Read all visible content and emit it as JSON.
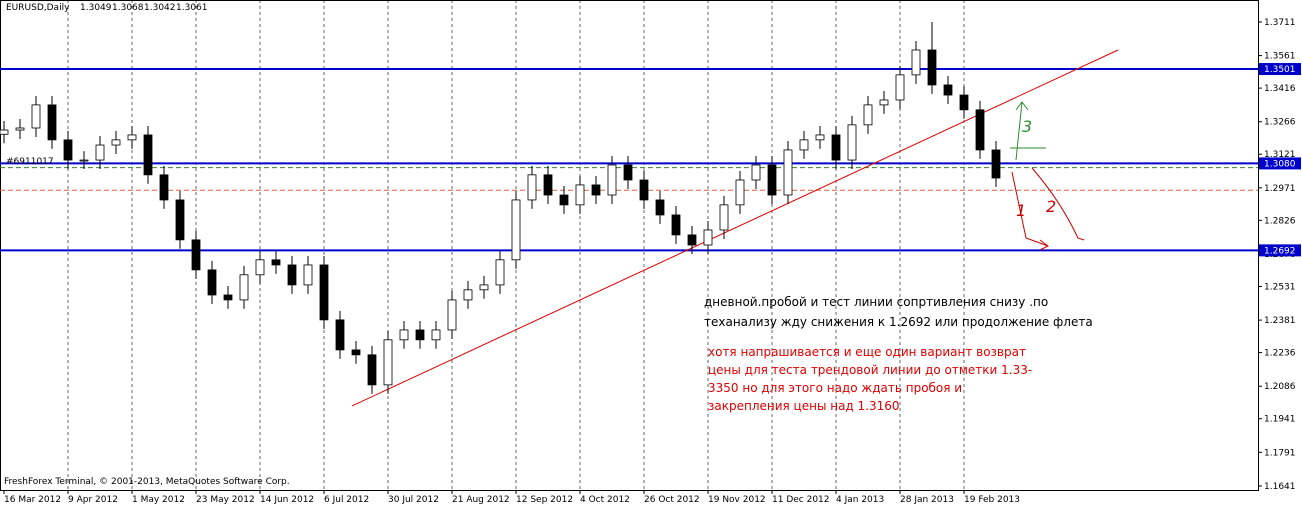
{
  "chart_data": {
    "type": "candlestick",
    "title": "EURUSD,Daily",
    "header_ohlc": [
      1.3049,
      1.3068,
      1.3042,
      1.3061
    ],
    "footer": "FreshForex Terminal, © 2001-2013, MetaQuotes Software Corp.",
    "account_label": "#6911017",
    "xlim": [
      -1,
      313.5
    ],
    "ylim": [
      1.1623,
      1.3809
    ],
    "xticks": [
      {
        "value": 0,
        "label": "16 Mar 2012"
      },
      {
        "value": 16,
        "label": "9 Apr 2012"
      },
      {
        "value": 32,
        "label": "1 May 2012"
      },
      {
        "value": 48,
        "label": "23 May 2012"
      },
      {
        "value": 64,
        "label": "14 Jun 2012"
      },
      {
        "value": 80,
        "label": "6 Jul 2012"
      },
      {
        "value": 96,
        "label": "30 Jul 2012"
      },
      {
        "value": 112,
        "label": "21 Aug 2012"
      },
      {
        "value": 128,
        "label": "12 Sep 2012"
      },
      {
        "value": 144,
        "label": "4 Oct 2012"
      },
      {
        "value": 160,
        "label": "26 Oct 2012"
      },
      {
        "value": 176,
        "label": "19 Nov 2012"
      },
      {
        "value": 192,
        "label": "11 Dec 2012"
      },
      {
        "value": 208,
        "label": "4 Jan 2013"
      },
      {
        "value": 224,
        "label": "28 Jan 2013"
      },
      {
        "value": 240,
        "label": "19 Feb 2013"
      }
    ],
    "yticks": [
      1.3711,
      1.3561,
      1.3416,
      1.3266,
      1.3121,
      1.2971,
      1.2826,
      1.2676,
      1.2531,
      1.2381,
      1.2236,
      1.2086,
      1.1941,
      1.1791,
      1.1641
    ],
    "grid": true,
    "x": [
      0,
      4,
      8,
      12,
      16,
      20,
      24,
      28,
      32,
      36,
      40,
      44,
      48,
      52,
      56,
      60,
      64,
      68,
      72,
      76,
      80,
      84,
      88,
      92,
      96,
      100,
      104,
      108,
      112,
      116,
      120,
      124,
      128,
      132,
      136,
      140,
      144,
      148,
      152,
      156,
      160,
      164,
      168,
      172,
      176,
      180,
      184,
      188,
      192,
      196,
      200,
      204,
      208,
      212,
      216,
      220,
      224,
      228,
      232,
      236,
      240,
      244,
      248
    ],
    "open": [
      1.321,
      1.3229,
      1.3238,
      1.3341,
      1.3185,
      1.3095,
      1.3095,
      1.3162,
      1.3185,
      1.3207,
      1.3029,
      1.2917,
      1.2739,
      1.2605,
      1.2493,
      1.2471,
      1.2583,
      1.265,
      1.2627,
      1.2538,
      1.2627,
      1.2382,
      1.2248,
      1.2226,
      1.2092,
      1.2293,
      1.2337,
      1.2293,
      1.2337,
      1.2471,
      1.2516,
      1.2538,
      1.265,
      1.2917,
      1.3029,
      1.2939,
      1.2895,
      1.2984,
      1.2939,
      1.3073,
      1.3006,
      1.2917,
      1.285,
      1.2761,
      1.2716,
      1.2783,
      1.2895,
      1.3006,
      1.3073,
      1.2939,
      1.314,
      1.3185,
      1.3207,
      1.3095,
      1.3252,
      1.3341,
      1.3363,
      1.3475,
      1.3586,
      1.343,
      1.3385,
      1.3319,
      1.314
    ],
    "high": [
      1.3269,
      1.3278,
      1.3381,
      1.3381,
      1.3225,
      1.3135,
      1.3202,
      1.3225,
      1.3247,
      1.3247,
      1.3069,
      1.2957,
      1.2779,
      1.2645,
      1.2533,
      1.2623,
      1.269,
      1.269,
      1.2667,
      1.2667,
      1.2667,
      1.2422,
      1.2288,
      1.2266,
      1.2333,
      1.2377,
      1.2377,
      1.2377,
      1.2511,
      1.2556,
      1.2578,
      1.269,
      1.2957,
      1.3069,
      1.3069,
      1.2979,
      1.3024,
      1.3024,
      1.3113,
      1.3113,
      1.3046,
      1.2957,
      1.289,
      1.2801,
      1.2823,
      1.2935,
      1.3046,
      1.3113,
      1.3113,
      1.318,
      1.3225,
      1.3247,
      1.3247,
      1.3292,
      1.3381,
      1.3403,
      1.3515,
      1.3626,
      1.3711,
      1.347,
      1.3425,
      1.3359,
      1.318
    ],
    "low": [
      1.317,
      1.3189,
      1.3198,
      1.3145,
      1.3055,
      1.3055,
      1.3055,
      1.3122,
      1.3145,
      1.2989,
      1.2877,
      1.2699,
      1.2565,
      1.2453,
      1.2431,
      1.2431,
      1.2543,
      1.2587,
      1.2498,
      1.2498,
      1.2342,
      1.2208,
      1.2186,
      1.2052,
      1.2052,
      1.2253,
      1.2253,
      1.2253,
      1.2297,
      1.2431,
      1.2476,
      1.2498,
      1.261,
      1.2877,
      1.2899,
      1.2855,
      1.2855,
      1.2899,
      1.2899,
      1.2966,
      1.2877,
      1.281,
      1.2721,
      1.2676,
      1.2676,
      1.2743,
      1.2855,
      1.2966,
      1.2899,
      1.2899,
      1.31,
      1.3145,
      1.3055,
      1.3055,
      1.3212,
      1.3301,
      1.3323,
      1.3435,
      1.339,
      1.3345,
      1.3279,
      1.31,
      1.2975
    ],
    "close": [
      1.3229,
      1.3238,
      1.3341,
      1.3185,
      1.3095,
      1.3095,
      1.3162,
      1.3185,
      1.3207,
      1.3029,
      1.2917,
      1.2739,
      1.2605,
      1.2493,
      1.2471,
      1.2583,
      1.265,
      1.2627,
      1.2538,
      1.2627,
      1.2382,
      1.2248,
      1.2226,
      1.2092,
      1.2293,
      1.2337,
      1.2293,
      1.2337,
      1.2471,
      1.2516,
      1.2538,
      1.265,
      1.2917,
      1.3029,
      1.2939,
      1.2895,
      1.2984,
      1.2939,
      1.3073,
      1.3006,
      1.2917,
      1.285,
      1.2761,
      1.2716,
      1.2783,
      1.2895,
      1.3006,
      1.3073,
      1.2939,
      1.314,
      1.3185,
      1.3207,
      1.3095,
      1.3252,
      1.3341,
      1.3363,
      1.3475,
      1.3586,
      1.343,
      1.3385,
      1.3319,
      1.314,
      1.3015
    ],
    "levels": [
      {
        "value": 1.3501,
        "color": "#0000cc"
      },
      {
        "value": 1.308,
        "label": "1.3080",
        "color": "#0000cc"
      },
      {
        "value": 1.2692,
        "color": "#0000cc"
      }
    ],
    "dashed_levels": [
      {
        "value": 1.3061,
        "color": "#2e8b2e"
      },
      {
        "value": 1.296,
        "color": "#e0603a"
      }
    ],
    "trendline": {
      "x": [
        87,
        278.5
      ],
      "y": [
        1.1998,
        1.3586
      ],
      "color": "#dd0000"
    },
    "annotations": {
      "main": [
        "дневной.пробой и тест линии сопртивления снизу .по",
        "теханализу жду снижения  к 1.2692 или продолжение флета"
      ],
      "alternative": [
        "хотя напрашивается и еще один вариант возврат",
        "цены для теста трендовой линии до отметки 1.33-",
        "3350 но для этого надо ждать пробоя и",
        "закрепления цены над 1.3160"
      ],
      "scenario_marks": [
        "1",
        "2",
        "3"
      ]
    }
  }
}
